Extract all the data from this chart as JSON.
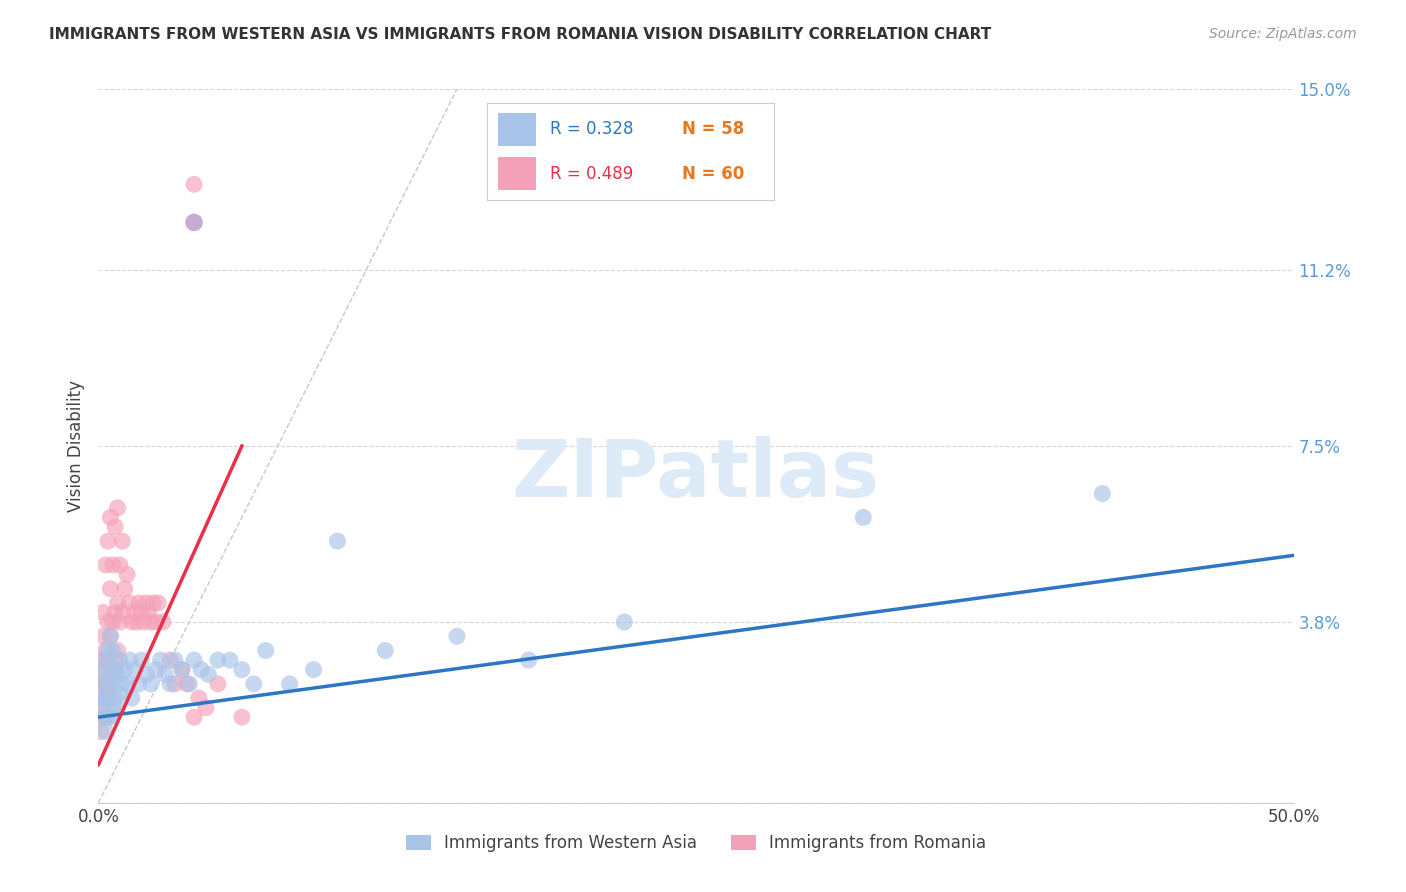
{
  "title": "IMMIGRANTS FROM WESTERN ASIA VS IMMIGRANTS FROM ROMANIA VISION DISABILITY CORRELATION CHART",
  "source": "Source: ZipAtlas.com",
  "ylabel": "Vision Disability",
  "xlim": [
    0,
    0.5
  ],
  "ylim": [
    0,
    0.15
  ],
  "ytick_positions": [
    0.038,
    0.075,
    0.112,
    0.15
  ],
  "ytick_labels": [
    "3.8%",
    "7.5%",
    "11.2%",
    "15.0%"
  ],
  "hline_positions": [
    0.0,
    0.038,
    0.075,
    0.112,
    0.15
  ],
  "legend_r_blue": "R = 0.328",
  "legend_n_blue": "N = 58",
  "legend_r_pink": "R = 0.489",
  "legend_n_pink": "N = 60",
  "legend_label_blue": "Immigrants from Western Asia",
  "legend_label_pink": "Immigrants from Romania",
  "color_blue": "#a8c4e8",
  "color_pink": "#f4a0b8",
  "color_trendline_blue": "#2e75c4",
  "color_trendline_pink": "#e8304a",
  "color_refline": "#c8c8c8",
  "color_ytick": "#5b9bd5",
  "color_hline": "#d8d8d8",
  "watermark": "ZIPatlas",
  "watermark_color": "#ddeaf8",
  "color_n_orange": "#e87820",
  "blue_x": [
    0.001,
    0.001,
    0.002,
    0.002,
    0.002,
    0.003,
    0.003,
    0.003,
    0.004,
    0.004,
    0.004,
    0.005,
    0.005,
    0.005,
    0.005,
    0.006,
    0.006,
    0.006,
    0.007,
    0.007,
    0.008,
    0.008,
    0.009,
    0.009,
    0.01,
    0.011,
    0.012,
    0.013,
    0.014,
    0.015,
    0.017,
    0.018,
    0.02,
    0.022,
    0.024,
    0.026,
    0.028,
    0.03,
    0.032,
    0.035,
    0.038,
    0.04,
    0.043,
    0.046,
    0.05,
    0.055,
    0.06,
    0.065,
    0.07,
    0.08,
    0.09,
    0.1,
    0.12,
    0.15,
    0.18,
    0.22,
    0.32,
    0.42
  ],
  "blue_y": [
    0.02,
    0.025,
    0.018,
    0.022,
    0.028,
    0.015,
    0.022,
    0.03,
    0.018,
    0.025,
    0.032,
    0.018,
    0.022,
    0.028,
    0.035,
    0.02,
    0.026,
    0.032,
    0.022,
    0.028,
    0.02,
    0.027,
    0.023,
    0.03,
    0.025,
    0.028,
    0.025,
    0.03,
    0.022,
    0.028,
    0.025,
    0.03,
    0.027,
    0.025,
    0.028,
    0.03,
    0.027,
    0.025,
    0.03,
    0.028,
    0.025,
    0.03,
    0.028,
    0.027,
    0.03,
    0.03,
    0.028,
    0.025,
    0.032,
    0.025,
    0.028,
    0.055,
    0.032,
    0.035,
    0.03,
    0.038,
    0.06,
    0.065
  ],
  "pink_x": [
    0.001,
    0.001,
    0.001,
    0.001,
    0.002,
    0.002,
    0.002,
    0.002,
    0.002,
    0.003,
    0.003,
    0.003,
    0.003,
    0.004,
    0.004,
    0.004,
    0.004,
    0.005,
    0.005,
    0.005,
    0.005,
    0.006,
    0.006,
    0.006,
    0.007,
    0.007,
    0.007,
    0.008,
    0.008,
    0.008,
    0.009,
    0.009,
    0.01,
    0.01,
    0.011,
    0.012,
    0.013,
    0.014,
    0.015,
    0.016,
    0.017,
    0.018,
    0.019,
    0.02,
    0.021,
    0.022,
    0.023,
    0.024,
    0.025,
    0.027,
    0.03,
    0.032,
    0.035,
    0.037,
    0.04,
    0.042,
    0.045,
    0.05,
    0.04,
    0.06
  ],
  "pink_y": [
    0.015,
    0.02,
    0.025,
    0.03,
    0.018,
    0.022,
    0.028,
    0.035,
    0.04,
    0.018,
    0.025,
    0.032,
    0.05,
    0.022,
    0.03,
    0.038,
    0.055,
    0.025,
    0.035,
    0.045,
    0.06,
    0.028,
    0.038,
    0.05,
    0.03,
    0.04,
    0.058,
    0.032,
    0.042,
    0.062,
    0.038,
    0.05,
    0.04,
    0.055,
    0.045,
    0.048,
    0.042,
    0.038,
    0.04,
    0.038,
    0.042,
    0.04,
    0.038,
    0.042,
    0.04,
    0.038,
    0.042,
    0.038,
    0.042,
    0.038,
    0.03,
    0.025,
    0.028,
    0.025,
    0.018,
    0.022,
    0.02,
    0.025,
    0.13,
    0.018
  ],
  "purple_x": [
    0.04
  ],
  "purple_y": [
    0.122
  ],
  "figsize": [
    14.06,
    8.92
  ],
  "dpi": 100
}
